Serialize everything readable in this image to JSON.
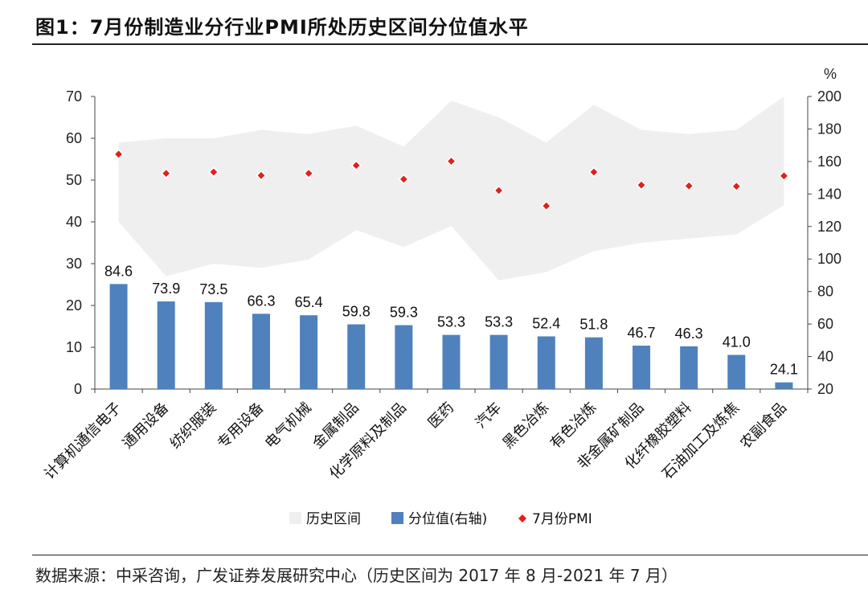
{
  "figure": {
    "title": "图1：7月份制造业分行业PMI所处历史区间分位值水平",
    "source": "数据来源：中采咨询，广发证券发展研究中心（历史区间为 2017 年 8 月-2021 年 7 月）"
  },
  "chart_data": {
    "type": "bar",
    "categories": [
      "计算机通信电子",
      "通用设备",
      "纺织服装",
      "专用设备",
      "电气机械",
      "金属制品",
      "化学原料及制品",
      "医药",
      "汽车",
      "黑色冶炼",
      "有色冶炼",
      "非金属矿制品",
      "化纤橡胶塑料",
      "石油加工及炼焦",
      "农副食品"
    ],
    "y_left": {
      "range": [
        0,
        70
      ],
      "ticks": [
        0,
        10,
        20,
        30,
        40,
        50,
        60,
        70
      ]
    },
    "y_right": {
      "range": [
        20,
        200
      ],
      "ticks": [
        20,
        40,
        60,
        80,
        100,
        120,
        140,
        160,
        180,
        200
      ],
      "unit_label": "%"
    },
    "legend": {
      "position": "bottom"
    },
    "series": [
      {
        "name": "历史区间",
        "kind": "band",
        "axis": "left",
        "color": "#efefef",
        "low": [
          40,
          27,
          30,
          29,
          31,
          38,
          34,
          39,
          26,
          28,
          33,
          35,
          36,
          37,
          44
        ],
        "high": [
          59,
          60,
          60,
          62,
          61,
          63,
          58,
          69,
          65,
          59,
          68,
          62,
          61,
          62,
          70
        ]
      },
      {
        "name": "分位值(右轴)",
        "kind": "bar",
        "axis": "right",
        "color": "#4f81bd",
        "values": [
          84.6,
          73.9,
          73.5,
          66.3,
          65.4,
          59.8,
          59.3,
          53.3,
          53.3,
          52.4,
          51.8,
          46.7,
          46.3,
          41.0,
          24.1
        ],
        "labels": [
          "84.6",
          "73.9",
          "73.5",
          "66.3",
          "65.4",
          "59.8",
          "59.3",
          "53.3",
          "53.3",
          "52.4",
          "51.8",
          "46.7",
          "46.3",
          "41.0",
          "24.1"
        ]
      },
      {
        "name": "7月份PMI",
        "kind": "point",
        "axis": "left",
        "color": "#e0201b",
        "values": [
          56.2,
          51.6,
          51.9,
          51.1,
          51.6,
          53.5,
          50.2,
          54.5,
          47.5,
          43.8,
          51.9,
          48.8,
          48.6,
          48.5,
          51.0
        ]
      }
    ]
  }
}
